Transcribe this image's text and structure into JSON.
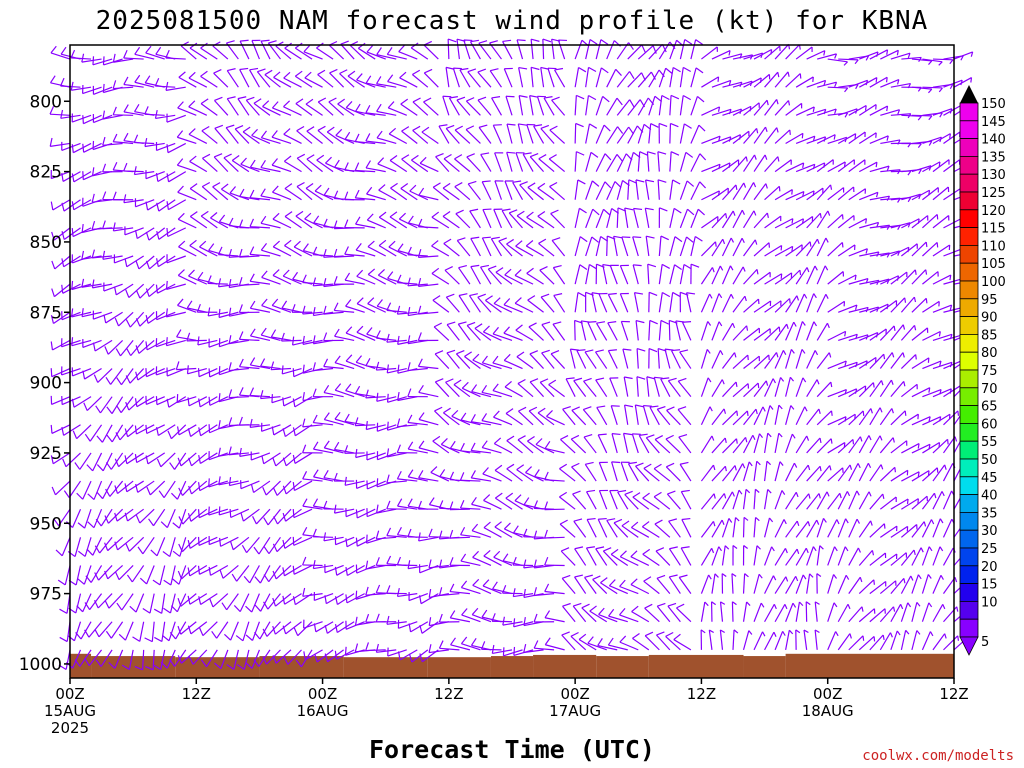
{
  "chart_data": {
    "type": "wind_barb_timeheight",
    "title": "2025081500 NAM forecast wind profile (kt) for KBNA",
    "xlabel": "Forecast Time (UTC)",
    "ylabel": "",
    "y_ticks": [
      "800",
      "825",
      "850",
      "875",
      "900",
      "925",
      "950",
      "975",
      "1000"
    ],
    "y_range_hpa": [
      780,
      1005
    ],
    "x_ticks": [
      {
        "hours": 0,
        "top": "00Z",
        "mid": "15AUG",
        "bot": "2025"
      },
      {
        "hours": 12,
        "top": "12Z",
        "mid": "",
        "bot": ""
      },
      {
        "hours": 24,
        "top": "00Z",
        "mid": "16AUG",
        "bot": ""
      },
      {
        "hours": 36,
        "top": "12Z",
        "mid": "",
        "bot": ""
      },
      {
        "hours": 48,
        "top": "00Z",
        "mid": "17AUG",
        "bot": ""
      },
      {
        "hours": 60,
        "top": "12Z",
        "mid": "",
        "bot": ""
      },
      {
        "hours": 72,
        "top": "00Z",
        "mid": "18AUG",
        "bot": ""
      },
      {
        "hours": 84,
        "top": "12Z",
        "mid": "",
        "bot": ""
      }
    ],
    "x_range_hours": [
      0,
      84
    ],
    "time_step_hours": 1,
    "pressure_levels": [
      785,
      795,
      805,
      815,
      825,
      835,
      845,
      855,
      865,
      875,
      885,
      895,
      905,
      915,
      925,
      935,
      945,
      955,
      965,
      975,
      985,
      995
    ],
    "barb_color": "#8800ff",
    "terrain_color": "#a0522d",
    "surface_pressure": [
      {
        "from": 0,
        "to": 2,
        "p": 996.4
      },
      {
        "from": 2,
        "to": 10,
        "p": 997.2
      },
      {
        "from": 10,
        "to": 18,
        "p": 997.6
      },
      {
        "from": 18,
        "to": 26,
        "p": 997.2
      },
      {
        "from": 26,
        "to": 34,
        "p": 997.6
      },
      {
        "from": 34,
        "to": 40,
        "p": 997.6
      },
      {
        "from": 40,
        "to": 44,
        "p": 997.2
      },
      {
        "from": 44,
        "to": 50,
        "p": 996.8
      },
      {
        "from": 50,
        "to": 55,
        "p": 997.2
      },
      {
        "from": 55,
        "to": 64,
        "p": 996.8
      },
      {
        "from": 64,
        "to": 68,
        "p": 997.2
      },
      {
        "from": 68,
        "to": 84,
        "p": 996.4
      }
    ],
    "wind_regimes": [
      {
        "from_hour": 0,
        "to_hour": 12,
        "low_dir": 200,
        "high_dir": 270,
        "speed_kt": 12
      },
      {
        "from_hour": 12,
        "to_hour": 24,
        "low_dir": 210,
        "high_dir": 320,
        "speed_kt": 10
      },
      {
        "from_hour": 24,
        "to_hour": 36,
        "low_dir": 250,
        "high_dir": 300,
        "speed_kt": 12
      },
      {
        "from_hour": 36,
        "to_hour": 48,
        "low_dir": 270,
        "high_dir": 340,
        "speed_kt": 10
      },
      {
        "from_hour": 48,
        "to_hour": 60,
        "low_dir": 300,
        "high_dir": 30,
        "speed_kt": 10
      },
      {
        "from_hour": 60,
        "to_hour": 72,
        "low_dir": 10,
        "high_dir": 60,
        "speed_kt": 8
      },
      {
        "from_hour": 72,
        "to_hour": 84,
        "low_dir": 30,
        "high_dir": 80,
        "speed_kt": 8
      }
    ],
    "colorbar": {
      "labels": [
        "150",
        "145",
        "140",
        "135",
        "130",
        "125",
        "120",
        "115",
        "110",
        "105",
        "100",
        "95",
        "90",
        "85",
        "80",
        "75",
        "70",
        "65",
        "60",
        "55",
        "50",
        "45",
        "40",
        "35",
        "30",
        "25",
        "20",
        "15",
        "10",
        "5"
      ],
      "colors": [
        "#ee00ee",
        "#ee00ee",
        "#ee00bb",
        "#ee0088",
        "#ee0066",
        "#ee0033",
        "#ff0000",
        "#ff2200",
        "#ee4400",
        "#ee6600",
        "#ee8800",
        "#eeaa00",
        "#eecc00",
        "#eeee00",
        "#ddff00",
        "#aaee00",
        "#77ee00",
        "#44ee00",
        "#22ee22",
        "#00ee77",
        "#00eebb",
        "#00ddee",
        "#00aaee",
        "#0088ee",
        "#0066ee",
        "#0044ee",
        "#0022ee",
        "#2200ee",
        "#5500ee",
        "#8800ff"
      ]
    }
  },
  "credit": "coolwx.com/modelts"
}
